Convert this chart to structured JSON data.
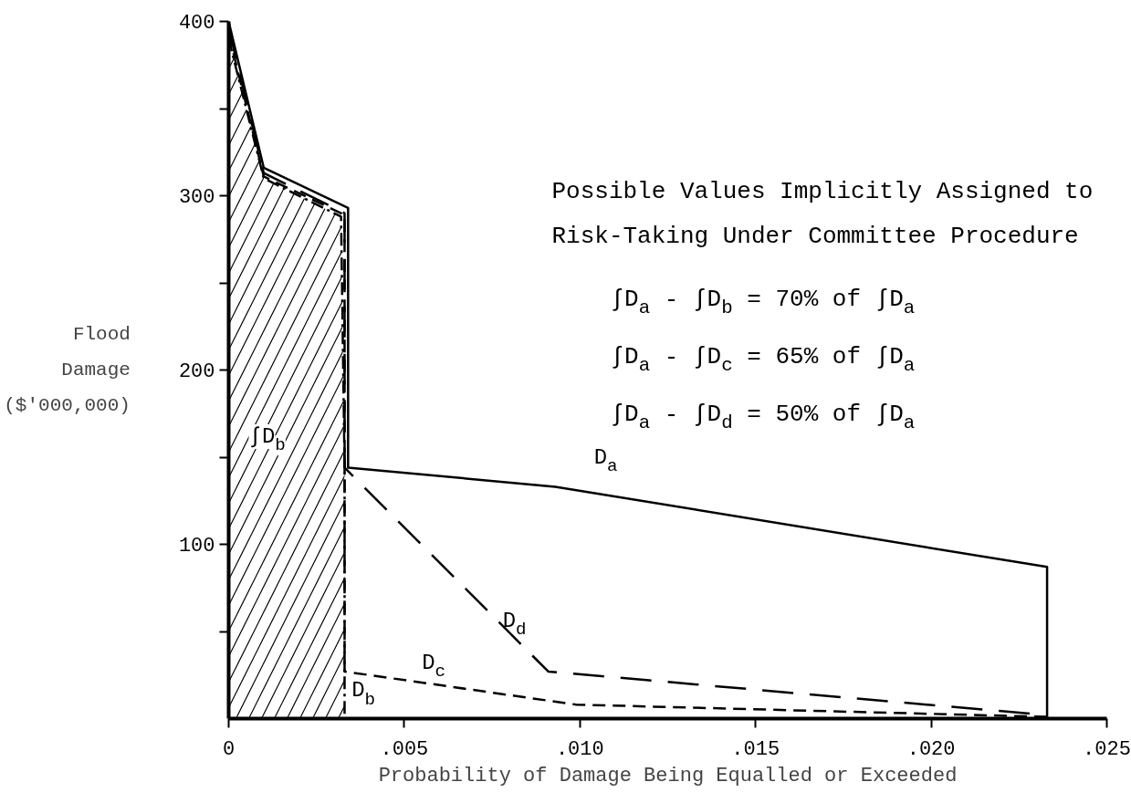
{
  "chart_data": {
    "type": "line",
    "xlabel": "Probability of Damage Being Equalled or Exceeded",
    "ylabel": "Flood Damage ($'000,000)",
    "xlim": [
      0,
      0.025
    ],
    "ylim": [
      0,
      400
    ],
    "xticks": [
      0,
      {
        "value": 0.005,
        "label": ".005"
      },
      {
        "value": 0.01,
        "label": ".010"
      },
      {
        "value": 0.015,
        "label": ".015"
      },
      {
        "value": 0.02,
        "label": ".020"
      },
      {
        "value": 0.025,
        "label": ".025"
      }
    ],
    "yticks": [
      {
        "value": 50,
        "label": null
      },
      100,
      {
        "value": 150,
        "label": null
      },
      200,
      {
        "value": 250,
        "label": null
      },
      300,
      {
        "value": 350,
        "label": null
      },
      400
    ],
    "grid": false,
    "marker": "none",
    "series": [
      {
        "name": "D$_{a}$",
        "color": "#000000",
        "line_style": "solid",
        "x": [
          0,
          0.001,
          0.0034,
          0.0034,
          0.0093,
          0.0233,
          0.0233
        ],
        "values": [
          400,
          316,
          293,
          144,
          133,
          87,
          0
        ]
      },
      {
        "name": "D$_{b}$",
        "type": "area",
        "color": "#000000",
        "line_style": "dashdot",
        "x": [
          0,
          0.001,
          0.0032,
          0.0033,
          0.0033
        ],
        "values": [
          390,
          310,
          288,
          144,
          0
        ]
      },
      {
        "name": "D$_{c}$",
        "color": "#000000",
        "line_style": "dashed",
        "x": [
          0,
          0.001,
          0.0033,
          0.0033,
          0.0099,
          0.0233
        ],
        "values": [
          393,
          311,
          289,
          27,
          8,
          1
        ]
      },
      {
        "name": "D$_{d}$",
        "color": "#000000",
        "line_style": "longdashed",
        "x": [
          0,
          0.001,
          0.0033,
          0.0033,
          0.0091,
          0.0233
        ],
        "values": [
          396,
          313,
          290,
          144,
          27,
          2
        ]
      }
    ],
    "annotations": [
      "Possible Values Implicitly Assigned to",
      "Risk-Taking Under Committee Procedure",
      "∫D$_{a}$ - ∫D$_{b}$ = 70% of ∫D$_{a}$",
      "∫D$_{a}$ - ∫D$_{c}$ = 65% of ∫D$_{a}$",
      "∫D$_{a}$ - ∫D$_{d}$ = 50% of ∫D$_{a}$",
      "∫D$_{b}$"
    ]
  }
}
